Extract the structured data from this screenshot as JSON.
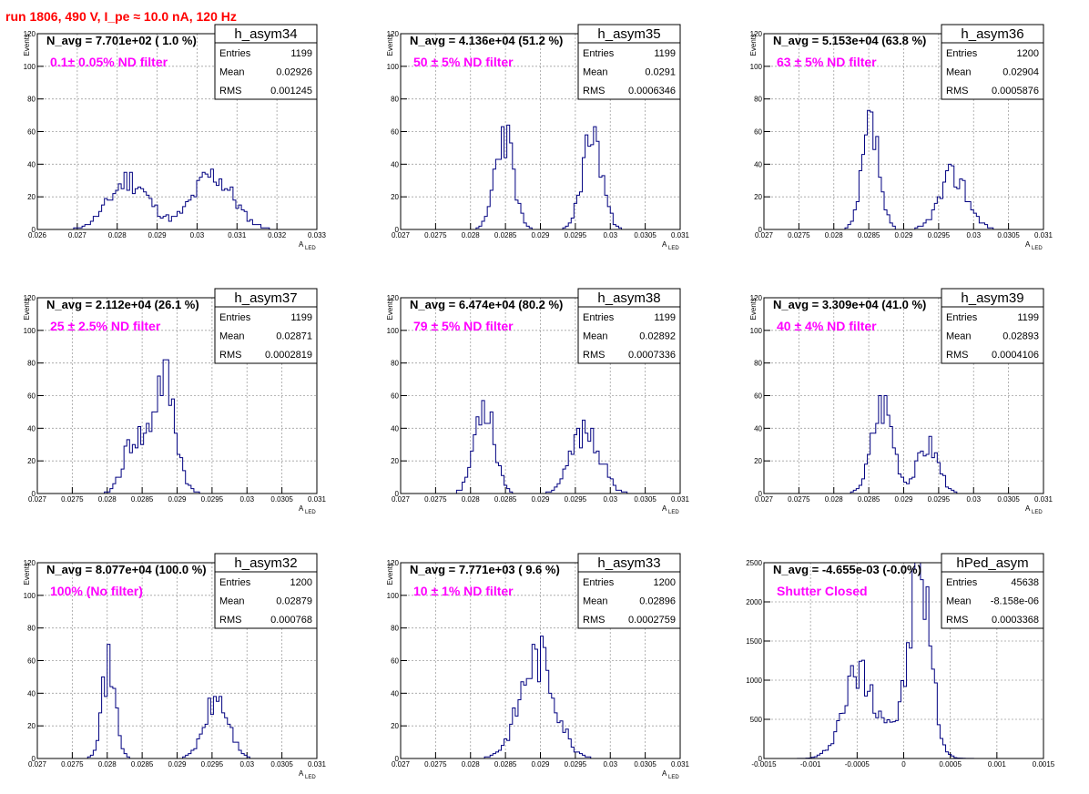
{
  "run_title": "run 1806,   490 V, I_pe ≈ 10.0 nA, 120 Hz",
  "colors": {
    "title": "#ff0000",
    "annotation": "#ff00ff",
    "histogram": "#000080",
    "axis": "#000000",
    "grid": "#a0a0a0"
  },
  "chart_data": [
    {
      "type": "bar",
      "hist": "h_asym34",
      "navg": "N_avg = 7.701e+02 ( 1.0 %)",
      "filter": "0.1± 0.05% ND filter",
      "stats": {
        "Entries": "1199",
        "Mean": "0.02926",
        "RMS": "0.001245"
      },
      "ylabel": "Events",
      "xlabel": "A",
      "xlabel_sub": "LED",
      "xlim": [
        0.026,
        0.033
      ],
      "ylim": [
        0,
        120
      ],
      "xticks": [
        "0.026",
        "0.027",
        "0.028",
        "0.029",
        "0.03",
        "0.031",
        "0.032",
        "0.033"
      ],
      "yticks": [
        "0",
        "20",
        "40",
        "60",
        "80",
        "100",
        "120"
      ],
      "peaks": [
        [
          0.0283,
          0.0005,
          30
        ],
        [
          0.0304,
          0.0005,
          33
        ]
      ],
      "seed": 11
    },
    {
      "type": "bar",
      "hist": "h_asym35",
      "navg": "N_avg = 4.136e+04 (51.2 %)",
      "filter": "50 ± 5% ND filter",
      "stats": {
        "Entries": "1199",
        "Mean": "0.0291",
        "RMS": "0.0006346"
      },
      "ylabel": "Events",
      "xlabel": "A",
      "xlabel_sub": "LED",
      "xlim": [
        0.027,
        0.031
      ],
      "ylim": [
        0,
        120
      ],
      "xticks": [
        "0.027",
        "0.0275",
        "0.028",
        "0.0285",
        "0.029",
        "0.0295",
        "0.03",
        "0.0305",
        "0.031"
      ],
      "yticks": [
        "0",
        "20",
        "40",
        "60",
        "80",
        "100",
        "120"
      ],
      "peaks": [
        [
          0.02848,
          0.00013,
          60
        ],
        [
          0.02974,
          0.00014,
          58
        ]
      ],
      "seed": 23
    },
    {
      "type": "bar",
      "hist": "h_asym36",
      "navg": "N_avg = 5.153e+04 (63.8 %)",
      "filter": "63 ± 5% ND filter",
      "stats": {
        "Entries": "1200",
        "Mean": "0.02904",
        "RMS": "0.0005876"
      },
      "ylabel": "Events",
      "xlabel": "A",
      "xlabel_sub": "LED",
      "xlim": [
        0.027,
        0.031
      ],
      "ylim": [
        0,
        120
      ],
      "xticks": [
        "0.027",
        "0.0275",
        "0.028",
        "0.0285",
        "0.029",
        "0.0295",
        "0.03",
        "0.0305",
        "0.031"
      ],
      "yticks": [
        "0",
        "20",
        "40",
        "60",
        "80",
        "100",
        "120"
      ],
      "peaks": [
        [
          0.02853,
          0.00012,
          62
        ],
        [
          0.02972,
          0.0002,
          33
        ]
      ],
      "seed": 37
    },
    {
      "type": "bar",
      "hist": "h_asym37",
      "navg": "N_avg = 2.112e+04 (26.1 %)",
      "filter": "25 ± 2.5% ND filter",
      "stats": {
        "Entries": "1199",
        "Mean": "0.02871",
        "RMS": "0.0002819"
      },
      "ylabel": "Events",
      "xlabel": "A",
      "xlabel_sub": "LED",
      "xlim": [
        0.027,
        0.031
      ],
      "ylim": [
        0,
        120
      ],
      "xticks": [
        "0.027",
        "0.0275",
        "0.028",
        "0.0285",
        "0.029",
        "0.0295",
        "0.03",
        "0.0305",
        "0.031"
      ],
      "yticks": [
        "0",
        "20",
        "40",
        "60",
        "80",
        "100",
        "120"
      ],
      "peaks": [
        [
          0.02881,
          0.00016,
          70
        ],
        [
          0.02838,
          0.00015,
          32
        ]
      ],
      "seed": 41
    },
    {
      "type": "bar",
      "hist": "h_asym38",
      "navg": "N_avg = 6.474e+04 (80.2 %)",
      "filter": "79 ± 5% ND filter",
      "stats": {
        "Entries": "1199",
        "Mean": "0.02892",
        "RMS": "0.0007336"
      },
      "ylabel": "Events",
      "xlabel": "A",
      "xlabel_sub": "LED",
      "xlim": [
        0.027,
        0.031
      ],
      "ylim": [
        0,
        120
      ],
      "xticks": [
        "0.027",
        "0.0275",
        "0.028",
        "0.0285",
        "0.029",
        "0.0295",
        "0.03",
        "0.0305",
        "0.031"
      ],
      "yticks": [
        "0",
        "20",
        "40",
        "60",
        "80",
        "100",
        "120"
      ],
      "peaks": [
        [
          0.0282,
          0.00014,
          58
        ],
        [
          0.02965,
          0.0002,
          40
        ]
      ],
      "seed": 53
    },
    {
      "type": "bar",
      "hist": "h_asym39",
      "navg": "N_avg = 3.309e+04 (41.0 %)",
      "filter": "40 ± 4% ND filter",
      "stats": {
        "Entries": "1199",
        "Mean": "0.02893",
        "RMS": "0.0004106"
      },
      "ylabel": "Events",
      "xlabel": "A",
      "xlabel_sub": "LED",
      "xlim": [
        0.027,
        0.031
      ],
      "ylim": [
        0,
        120
      ],
      "xticks": [
        "0.027",
        "0.0275",
        "0.028",
        "0.0285",
        "0.029",
        "0.0295",
        "0.03",
        "0.0305",
        "0.031"
      ],
      "yticks": [
        "0",
        "20",
        "40",
        "60",
        "80",
        "100",
        "120"
      ],
      "peaks": [
        [
          0.0287,
          0.00015,
          56
        ],
        [
          0.02935,
          0.00015,
          30
        ]
      ],
      "seed": 67
    },
    {
      "type": "bar",
      "hist": "h_asym32",
      "navg": "N_avg = 8.077e+04 (100.0 %)",
      "filter": "100% (No filter)",
      "stats": {
        "Entries": "1200",
        "Mean": "0.02879",
        "RMS": "0.000768"
      },
      "ylabel": "Events",
      "xlabel": "A",
      "xlabel_sub": "LED",
      "xlim": [
        0.027,
        0.031
      ],
      "ylim": [
        0,
        120
      ],
      "xticks": [
        "0.027",
        "0.0275",
        "0.028",
        "0.0285",
        "0.029",
        "0.0295",
        "0.03",
        "0.0305",
        "0.031"
      ],
      "yticks": [
        "0",
        "20",
        "40",
        "60",
        "80",
        "100",
        "120"
      ],
      "peaks": [
        [
          0.02802,
          0.0001,
          55
        ],
        [
          0.02957,
          0.00017,
          36
        ]
      ],
      "seed": 71
    },
    {
      "type": "bar",
      "hist": "h_asym33",
      "navg": "N_avg = 7.771e+03 ( 9.6 %)",
      "filter": "10 ± 1% ND filter",
      "stats": {
        "Entries": "1200",
        "Mean": "0.02896",
        "RMS": "0.0002759"
      },
      "ylabel": "Events",
      "xlabel": "A",
      "xlabel_sub": "LED",
      "xlim": [
        0.027,
        0.031
      ],
      "ylim": [
        0,
        120
      ],
      "xticks": [
        "0.027",
        "0.0275",
        "0.028",
        "0.0285",
        "0.029",
        "0.0295",
        "0.03",
        "0.0305",
        "0.031"
      ],
      "yticks": [
        "0",
        "20",
        "40",
        "60",
        "80",
        "100",
        "120"
      ],
      "peaks": [
        [
          0.02896,
          0.00025,
          62
        ]
      ],
      "seed": 83
    },
    {
      "type": "bar",
      "hist": "hPed_asym",
      "navg": "N_avg = -4.655e-03 (-0.0%)",
      "filter": "Shutter Closed",
      "stats": {
        "Entries": "45638",
        "Mean": "-8.158e-06",
        "RMS": "0.0003368"
      },
      "ylabel": "",
      "xlabel": "",
      "xlabel_sub": "",
      "xlim": [
        -0.0015,
        0.0015
      ],
      "ylim": [
        0,
        2500
      ],
      "xticks": [
        "-0.0015",
        "-0.001",
        "-0.0005",
        "0",
        "0.0005",
        "0.001",
        "0.0015"
      ],
      "yticks": [
        "0",
        "500",
        "1000",
        "1500",
        "2000",
        "2500"
      ],
      "peaks": [
        [
          -0.0005,
          0.00016,
          940
        ],
        [
          0.00018,
          0.00011,
          2250
        ],
        [
          -0.00015,
          0.00025,
          380
        ]
      ],
      "seed": 97
    }
  ]
}
